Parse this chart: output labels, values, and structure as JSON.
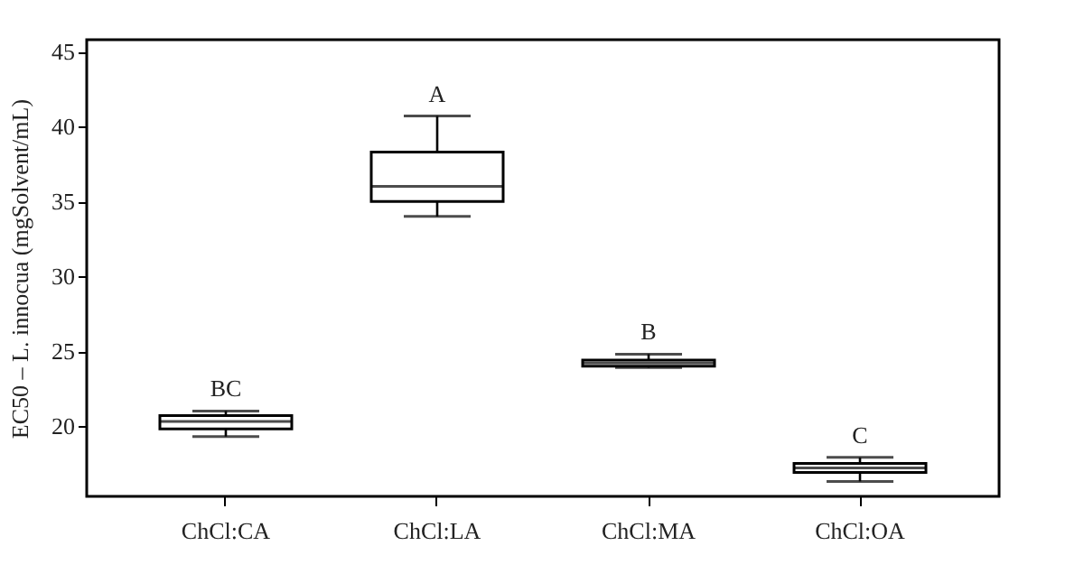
{
  "chart_data": {
    "type": "box",
    "ylabel": "EC50 – L. innocua (mgSolvent/mL)",
    "categories": [
      "ChCl:CA",
      "ChCl:LA",
      "ChCl:MA",
      "ChCl:OA"
    ],
    "boxes": [
      {
        "low": 19.3,
        "q1": 19.8,
        "median": 20.3,
        "q3": 20.7,
        "high": 21.0
      },
      {
        "low": 34.0,
        "q1": 35.0,
        "median": 36.0,
        "q3": 38.3,
        "high": 40.7
      },
      {
        "low": 23.9,
        "q1": 24.0,
        "median": 24.2,
        "q3": 24.4,
        "high": 24.8
      },
      {
        "low": 16.3,
        "q1": 16.9,
        "median": 17.2,
        "q3": 17.5,
        "high": 17.9
      }
    ],
    "annotations": [
      {
        "text": "BC",
        "x": "ChCl:CA",
        "y": 21.0
      },
      {
        "text": "A",
        "x": "ChCl:LA",
        "y": 40.7
      },
      {
        "text": "B",
        "x": "ChCl:MA",
        "y": 24.8
      },
      {
        "text": "C",
        "x": "ChCl:OA",
        "y": 17.9
      }
    ],
    "ylim": [
      15.3,
      45.8
    ],
    "yticks": [
      20,
      25,
      30,
      35,
      40,
      45
    ]
  }
}
